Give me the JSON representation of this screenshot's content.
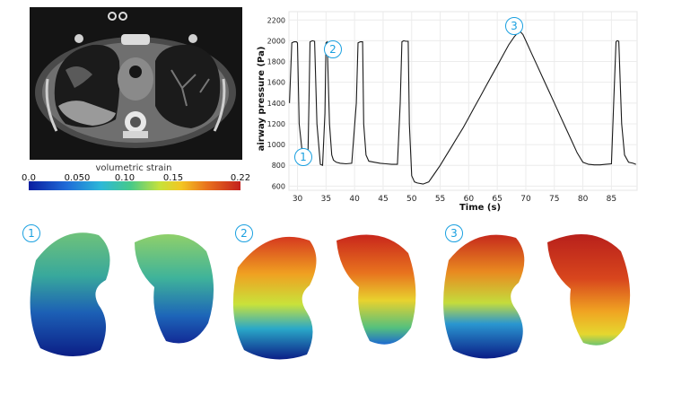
{
  "colorbar": {
    "title": "volumetric strain",
    "ticks": [
      "0.0",
      "0.050",
      "0.10",
      "0.15",
      "0.22"
    ],
    "tick_values": [
      0.0,
      0.05,
      0.1,
      0.15,
      0.22
    ],
    "range": [
      0.0,
      0.22
    ]
  },
  "markers": {
    "m1": "1",
    "m2": "2",
    "m3": "3"
  },
  "lung_panels": {
    "p1_label": "1",
    "p2_label": "2",
    "p3_label": "3"
  },
  "chart_data": {
    "type": "line",
    "xlabel": "Time (s)",
    "ylabel": "airway pressure (Pa)",
    "xlim": [
      28.5,
      89.5
    ],
    "ylim": [
      560,
      2280
    ],
    "xticks": [
      30,
      35,
      40,
      45,
      50,
      55,
      60,
      65,
      70,
      75,
      80,
      85
    ],
    "yticks": [
      600,
      800,
      1000,
      1200,
      1400,
      1600,
      1800,
      2000,
      2200
    ],
    "grid": true,
    "series": [
      {
        "x": [
          28.6,
          29.0,
          29.4,
          29.8,
          30.0,
          30.3,
          31.0,
          31.4,
          31.8,
          32.0,
          32.2,
          32.6,
          33.0,
          33.4,
          34.0,
          34.4,
          34.8,
          35.0,
          35.2,
          35.6,
          36.0,
          36.3,
          36.8,
          37.5,
          38.5,
          39.5,
          40.3,
          40.6,
          41.0,
          41.4,
          41.6,
          42.0,
          42.5,
          43.5,
          44.5,
          45.5,
          46.5,
          47.5,
          48.0,
          48.3,
          48.6,
          49.0,
          49.4,
          49.6,
          50.0,
          50.5,
          51.0,
          52.0,
          53.0,
          54.0,
          55.0,
          56.0,
          57.0,
          58.0,
          59.0,
          60.0,
          61.0,
          62.0,
          63.0,
          64.0,
          65.0,
          66.0,
          67.0,
          68.0,
          68.5,
          69.0,
          69.5,
          70.0,
          71.0,
          72.0,
          73.0,
          74.0,
          75.0,
          76.0,
          77.0,
          78.0,
          79.0,
          80.0,
          81.0,
          82.0,
          83.0,
          84.0,
          85.0,
          85.4,
          85.8,
          86.0,
          86.3,
          86.8,
          87.3,
          88.0,
          88.8,
          89.3
        ],
        "y": [
          1400,
          1980,
          1990,
          1990,
          1980,
          1200,
          840,
          820,
          815,
          1400,
          1990,
          2000,
          1995,
          1200,
          810,
          800,
          1300,
          1980,
          1990,
          1200,
          900,
          850,
          830,
          820,
          815,
          820,
          1400,
          1980,
          1990,
          1990,
          1200,
          900,
          840,
          830,
          820,
          815,
          810,
          810,
          1400,
          1990,
          2000,
          1995,
          1995,
          1200,
          700,
          640,
          630,
          620,
          640,
          720,
          800,
          890,
          980,
          1070,
          1160,
          1260,
          1360,
          1460,
          1560,
          1660,
          1760,
          1860,
          1960,
          2040,
          2070,
          2090,
          2060,
          2000,
          1880,
          1760,
          1640,
          1520,
          1400,
          1280,
          1160,
          1040,
          920,
          830,
          810,
          805,
          805,
          810,
          815,
          1400,
          1990,
          2000,
          1995,
          1200,
          900,
          830,
          820,
          810
        ]
      }
    ],
    "annotations": [
      "1",
      "2",
      "3"
    ]
  }
}
